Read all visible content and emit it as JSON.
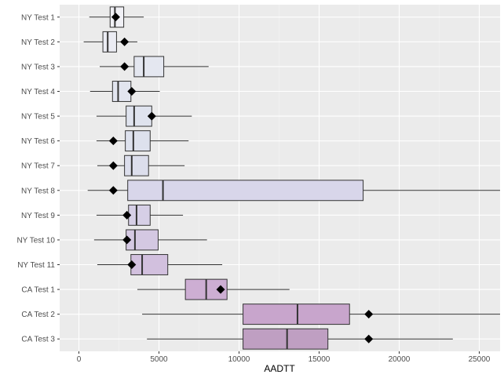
{
  "chart_data": {
    "type": "boxplot",
    "orientation": "horizontal",
    "title": "",
    "xlabel": "AADTT",
    "ylabel": "",
    "xlim": [
      -1200,
      26300
    ],
    "x_ticks": [
      0,
      5000,
      10000,
      15000,
      20000,
      25000
    ],
    "x_tick_labels": [
      "0",
      "5000",
      "10000",
      "15000",
      "20000",
      "25000"
    ],
    "grid": true,
    "mean_marker": "diamond",
    "categories": [
      "NY Test 1",
      "NY Test 2",
      "NY Test 3",
      "NY Test 4",
      "NY Test 5",
      "NY Test 6",
      "NY Test 7",
      "NY Test 8",
      "NY Test 9",
      "NY Test 10",
      "NY Test 11",
      "CA Test 1",
      "CA Test 2",
      "CA Test 3"
    ],
    "boxes": [
      {
        "category": "NY Test 1",
        "whisker_low": 650,
        "q1": 1950,
        "median": 2250,
        "q3": 2800,
        "whisker_high": 4050,
        "mean": 2300,
        "fill": "#f0f0f5"
      },
      {
        "category": "NY Test 2",
        "whisker_low": 300,
        "q1": 1500,
        "median": 1800,
        "q3": 2350,
        "whisker_high": 3650,
        "mean": 2850,
        "fill": "#ebecf3"
      },
      {
        "category": "NY Test 3",
        "whisker_low": 1300,
        "q1": 3450,
        "median": 4050,
        "q3": 5300,
        "whisker_high": 8100,
        "mean": 2850,
        "fill": "#e4e7f0"
      },
      {
        "category": "NY Test 4",
        "whisker_low": 700,
        "q1": 2100,
        "median": 2450,
        "q3": 3250,
        "whisker_high": 5050,
        "mean": 3300,
        "fill": "#e2e5ef"
      },
      {
        "category": "NY Test 5",
        "whisker_low": 1100,
        "q1": 2950,
        "median": 3450,
        "q3": 4550,
        "whisker_high": 7050,
        "mean": 4550,
        "fill": "#dfe3ee"
      },
      {
        "category": "NY Test 6",
        "whisker_low": 1100,
        "q1": 2900,
        "median": 3400,
        "q3": 4450,
        "whisker_high": 6850,
        "mean": 2150,
        "fill": "#dde1ed"
      },
      {
        "category": "NY Test 7",
        "whisker_low": 1150,
        "q1": 2850,
        "median": 3300,
        "q3": 4350,
        "whisker_high": 6600,
        "mean": 2150,
        "fill": "#dcdeec"
      },
      {
        "category": "NY Test 8",
        "whisker_low": 550,
        "q1": 3050,
        "median": 5250,
        "q3": 17750,
        "whisker_high": 26300,
        "mean": 2150,
        "fill": "#d8d6ea"
      },
      {
        "category": "NY Test 9",
        "whisker_low": 1100,
        "q1": 3100,
        "median": 3600,
        "q3": 4450,
        "whisker_high": 6500,
        "mean": 3000,
        "fill": "#d6cfe6"
      },
      {
        "category": "NY Test 10",
        "whisker_low": 950,
        "q1": 2950,
        "median": 3500,
        "q3": 4950,
        "whisker_high": 8000,
        "mean": 3000,
        "fill": "#d4c8e2"
      },
      {
        "category": "NY Test 11",
        "whisker_low": 1150,
        "q1": 3250,
        "median": 3950,
        "q3": 5550,
        "whisker_high": 8950,
        "mean": 3300,
        "fill": "#d2c0de"
      },
      {
        "category": "CA Test 1",
        "whisker_low": 3650,
        "q1": 6650,
        "median": 7950,
        "q3": 9250,
        "whisker_high": 13150,
        "mean": 8850,
        "fill": "#cdaed3"
      },
      {
        "category": "CA Test 2",
        "whisker_low": 3950,
        "q1": 10250,
        "median": 13650,
        "q3": 16900,
        "whisker_high": 26300,
        "mean": 18100,
        "fill": "#c8a5cc"
      },
      {
        "category": "CA Test 3",
        "whisker_low": 4250,
        "q1": 10250,
        "median": 13000,
        "q3": 15550,
        "whisker_high": 23350,
        "mean": 18100,
        "fill": "#bf9fc2"
      }
    ]
  }
}
